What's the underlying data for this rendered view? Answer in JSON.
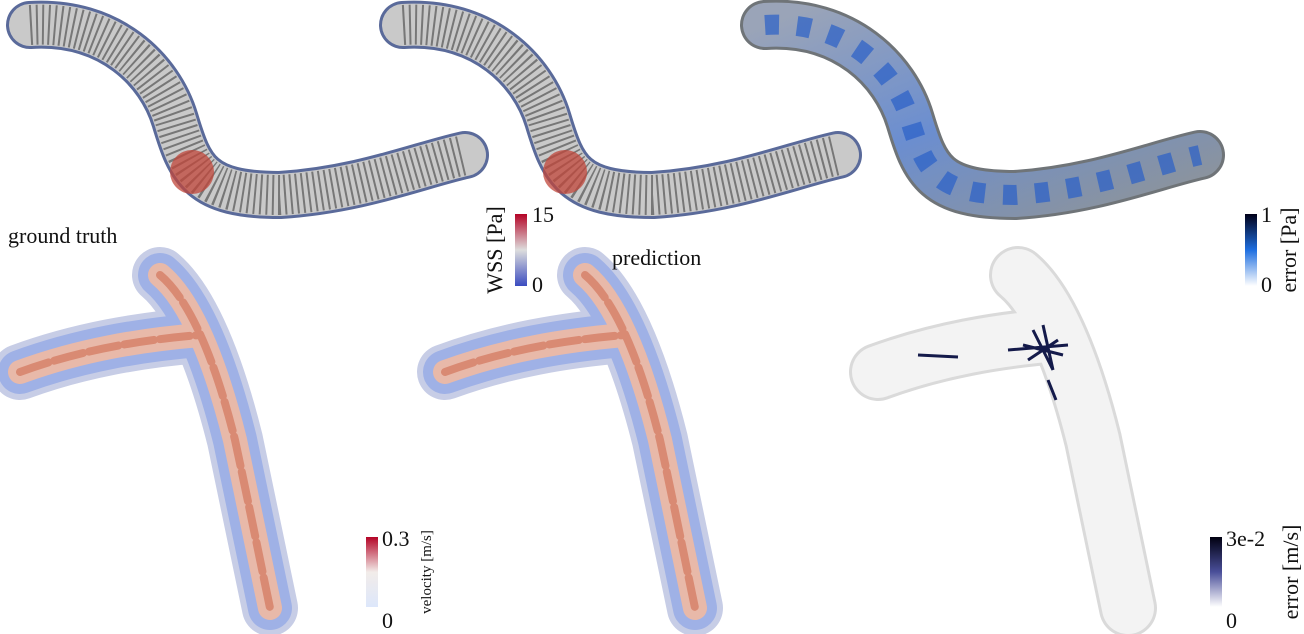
{
  "panels": {
    "left_label": "ground truth",
    "middle_label": "prediction"
  },
  "colorbars": [
    {
      "label": "WSS [Pa]",
      "max": "15",
      "min": "0"
    },
    {
      "label": "error [Pa]",
      "max": "1",
      "min": "0"
    },
    {
      "label": "velocity [m/s]",
      "max": "0.3",
      "min": "0"
    },
    {
      "label": "error [m/s]",
      "max": "3e-2",
      "min": "0"
    }
  ]
}
